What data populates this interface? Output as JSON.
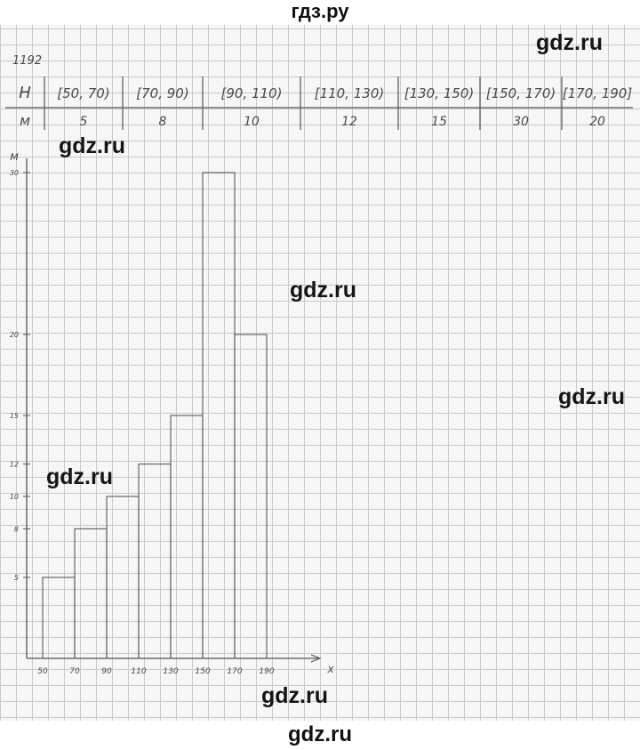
{
  "header": {
    "site_title": "гдз.ру",
    "footer": "gdz.ru"
  },
  "watermarks": [
    "gdz.ru",
    "gdz.ru",
    "gdz.ru",
    "gdz.ru",
    "gdz.ru",
    "gdz.ru"
  ],
  "task_number": "1192",
  "table": {
    "row1_label": "H",
    "row2_label": "м",
    "intervals": [
      "[50, 70)",
      "[70, 90)",
      "[90, 110)",
      "[110, 130)",
      "[130, 150)",
      "[150, 170)",
      "[170, 190]"
    ],
    "counts": [
      "5",
      "8",
      "10",
      "12",
      "15",
      "30",
      "20"
    ]
  },
  "chart_data": {
    "type": "bar",
    "xlabel": "x",
    "ylabel": "м",
    "bins": [
      [
        50,
        70
      ],
      [
        70,
        90
      ],
      [
        90,
        110
      ],
      [
        110,
        130
      ],
      [
        130,
        150
      ],
      [
        150,
        170
      ],
      [
        170,
        190
      ]
    ],
    "values": [
      5,
      8,
      10,
      12,
      15,
      30,
      20
    ],
    "x_ticks": [
      "50",
      "70",
      "90",
      "110",
      "130",
      "150",
      "170",
      "190"
    ],
    "y_ticks": [
      5,
      8,
      10,
      12,
      15,
      20,
      30
    ],
    "y_tick_labels": [
      "5",
      "8",
      "10",
      "12",
      "15",
      "20",
      "30"
    ],
    "xlim": [
      40,
      200
    ],
    "ylim": [
      0,
      33
    ],
    "grid": true
  }
}
